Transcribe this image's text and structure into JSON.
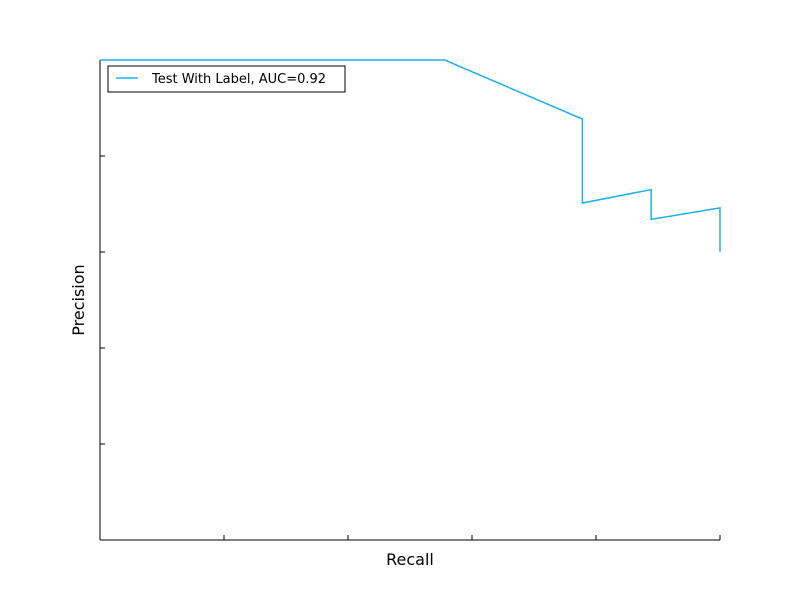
{
  "chart_data": {
    "type": "line",
    "xlabel": "Recall",
    "ylabel": "Precision",
    "xlim": [
      0.0,
      1.0
    ],
    "ylim": [
      0.0,
      1.0
    ],
    "x_ticks": [
      0.0,
      0.2,
      0.4,
      0.6,
      0.8,
      1.0
    ],
    "y_ticks": [
      0.0,
      0.2,
      0.4,
      0.6,
      0.8,
      1.0
    ],
    "tick_labels_visible": false,
    "grid": false,
    "legend_position": "top-left",
    "series": [
      {
        "name": "Test With Label, AUC=0.92",
        "color": "#1eb0ee",
        "points": [
          [
            0.0,
            1.0
          ],
          [
            0.556,
            1.0
          ],
          [
            0.778,
            0.877
          ],
          [
            0.778,
            0.702
          ],
          [
            0.889,
            0.73
          ],
          [
            0.889,
            0.668
          ],
          [
            1.0,
            0.692
          ],
          [
            1.0,
            0.6
          ]
        ]
      }
    ]
  }
}
